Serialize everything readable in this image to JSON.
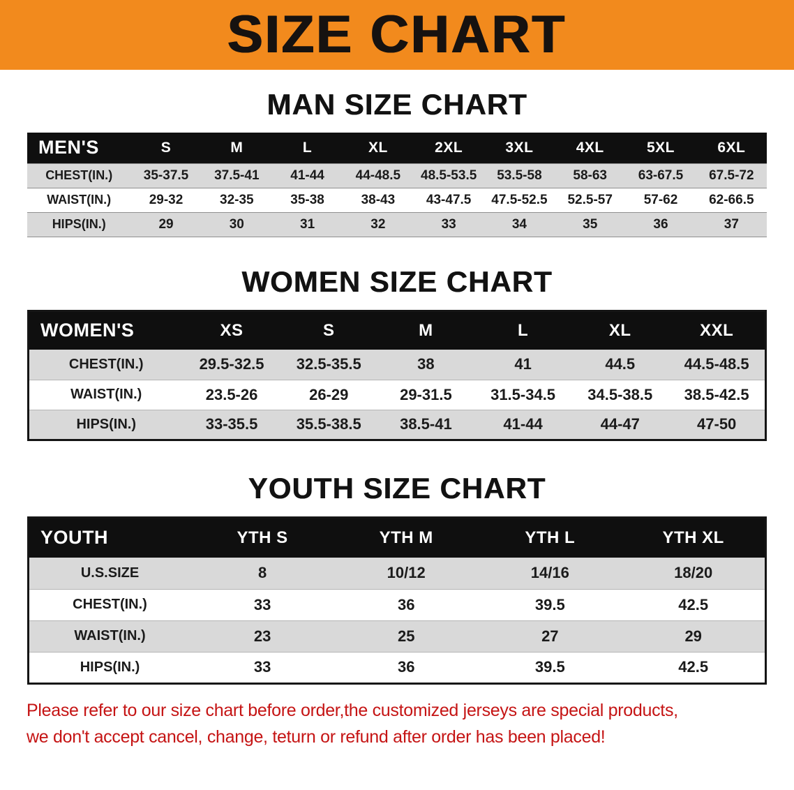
{
  "banner": {
    "title": "SIZE CHART"
  },
  "colors": {
    "banner_bg": "#f28a1d",
    "table_header_bg": "#0f0f0f",
    "shaded_row_bg": "#d9d9d9",
    "notice_text": "#c51414"
  },
  "men": {
    "heading": "MAN SIZE CHART",
    "header": [
      "MEN'S",
      "S",
      "M",
      "L",
      "XL",
      "2XL",
      "3XL",
      "4XL",
      "5XL",
      "6XL"
    ],
    "rows": [
      [
        "CHEST(IN.)",
        "35-37.5",
        "37.5-41",
        "41-44",
        "44-48.5",
        "48.5-53.5",
        "53.5-58",
        "58-63",
        "63-67.5",
        "67.5-72"
      ],
      [
        "WAIST(IN.)",
        "29-32",
        "32-35",
        "35-38",
        "38-43",
        "43-47.5",
        "47.5-52.5",
        "52.5-57",
        "57-62",
        "62-66.5"
      ],
      [
        "HIPS(IN.)",
        "29",
        "30",
        "31",
        "32",
        "33",
        "34",
        "35",
        "36",
        "37"
      ]
    ]
  },
  "women": {
    "heading": "WOMEN SIZE CHART",
    "header": [
      "WOMEN'S",
      "XS",
      "S",
      "M",
      "L",
      "XL",
      "XXL"
    ],
    "rows": [
      [
        "CHEST(IN.)",
        "29.5-32.5",
        "32.5-35.5",
        "38",
        "41",
        "44.5",
        "44.5-48.5"
      ],
      [
        "WAIST(IN.)",
        "23.5-26",
        "26-29",
        "29-31.5",
        "31.5-34.5",
        "34.5-38.5",
        "38.5-42.5"
      ],
      [
        "HIPS(IN.)",
        "33-35.5",
        "35.5-38.5",
        "38.5-41",
        "41-44",
        "44-47",
        "47-50"
      ]
    ]
  },
  "youth": {
    "heading": "YOUTH SIZE CHART",
    "header": [
      "YOUTH",
      "YTH S",
      "YTH M",
      "YTH L",
      "YTH XL"
    ],
    "rows": [
      [
        "U.S.SIZE",
        "8",
        "10/12",
        "14/16",
        "18/20"
      ],
      [
        "CHEST(IN.)",
        "33",
        "36",
        "39.5",
        "42.5"
      ],
      [
        "WAIST(IN.)",
        "23",
        "25",
        "27",
        "29"
      ],
      [
        "HIPS(IN.)",
        "33",
        "36",
        "39.5",
        "42.5"
      ]
    ]
  },
  "footer": {
    "line1": "Please refer to our size chart before order,the customized jerseys are special products,",
    "line2": "we don't accept cancel, change, teturn or refund after order has been placed!"
  }
}
